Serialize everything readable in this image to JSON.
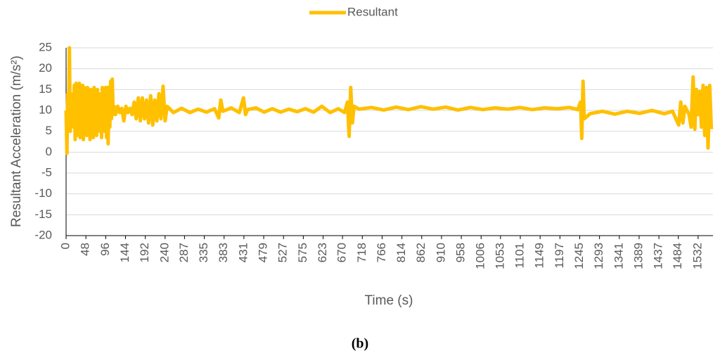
{
  "chart_data": {
    "type": "line",
    "caption": "(b)",
    "xlabel": "Time (s)",
    "ylabel": "Resultant Acceleration (m/s²)",
    "xlim": [
      0,
      1568
    ],
    "ylim": [
      -20,
      25
    ],
    "xticks": [
      0,
      48,
      96,
      144,
      192,
      240,
      287,
      335,
      383,
      431,
      479,
      527,
      575,
      623,
      670,
      718,
      766,
      814,
      862,
      910,
      958,
      1006,
      1053,
      1101,
      1149,
      1197,
      1245,
      1293,
      1341,
      1389,
      1437,
      1484,
      1532
    ],
    "yticks": [
      -20,
      -15,
      -10,
      -5,
      0,
      5,
      10,
      15,
      20,
      25
    ],
    "grid": true,
    "legend": "top",
    "series": [
      {
        "name": "Resultant",
        "color": "#ffc000",
        "x": [
          0,
          2,
          4,
          6,
          8,
          10,
          12,
          14,
          16,
          18,
          20,
          22,
          24,
          26,
          28,
          30,
          32,
          34,
          36,
          38,
          40,
          42,
          44,
          46,
          48,
          50,
          52,
          54,
          56,
          58,
          60,
          62,
          64,
          66,
          68,
          70,
          72,
          74,
          76,
          78,
          80,
          82,
          84,
          86,
          88,
          90,
          92,
          94,
          96,
          98,
          100,
          102,
          104,
          106,
          108,
          110,
          112,
          114,
          116,
          120,
          125,
          130,
          135,
          140,
          145,
          150,
          155,
          160,
          165,
          170,
          175,
          180,
          185,
          190,
          195,
          200,
          205,
          210,
          215,
          220,
          225,
          230,
          235,
          240,
          245,
          260,
          280,
          300,
          320,
          340,
          360,
          370,
          375,
          380,
          400,
          420,
          430,
          435,
          440,
          460,
          480,
          500,
          520,
          540,
          560,
          580,
          600,
          620,
          640,
          660,
          675,
          682,
          686,
          690,
          694,
          698,
          710,
          740,
          770,
          800,
          830,
          860,
          890,
          920,
          950,
          980,
          1010,
          1040,
          1070,
          1100,
          1130,
          1160,
          1190,
          1220,
          1240,
          1247,
          1250,
          1253,
          1256,
          1270,
          1300,
          1330,
          1360,
          1390,
          1420,
          1450,
          1470,
          1485,
          1490,
          1495,
          1500,
          1510,
          1515,
          1520,
          1524,
          1528,
          1532,
          1536,
          1540,
          1544,
          1548,
          1552,
          1556,
          1560,
          1564
        ],
        "values": [
          10,
          -0.3,
          14,
          6,
          25,
          5,
          14,
          8,
          13,
          6,
          16,
          3,
          16.5,
          4,
          15,
          5,
          16.5,
          3.5,
          16,
          6,
          16,
          3,
          15.5,
          5,
          14,
          4,
          15.5,
          6,
          15,
          3,
          15,
          5,
          14,
          3.5,
          15.5,
          6,
          13,
          4,
          15,
          7,
          14,
          5,
          12,
          3.5,
          15.5,
          6,
          15,
          5,
          15.5,
          3.5,
          15.5,
          2,
          15.5,
          6,
          17,
          8,
          17.5,
          9,
          11,
          9,
          11,
          9.5,
          10.5,
          7.5,
          11,
          9.5,
          10.5,
          9,
          12,
          8,
          13,
          7.5,
          13,
          8,
          12.5,
          7,
          13.5,
          6.5,
          12.5,
          7.5,
          14,
          8,
          15.8,
          7.5,
          11,
          9.5,
          10.5,
          9.5,
          10.3,
          9.6,
          10.4,
          8.2,
          12.5,
          9.8,
          10.6,
          9.5,
          13,
          9,
          10.2,
          10.6,
          9.6,
          10.4,
          9.6,
          10.3,
          9.7,
          10.4,
          9.6,
          11,
          9.5,
          10.4,
          9.5,
          12,
          3.8,
          15.5,
          7,
          11,
          10.3,
          10.7,
          10.1,
          10.8,
          10.2,
          10.9,
          10.3,
          10.8,
          10.1,
          10.7,
          10.2,
          10.6,
          10.3,
          10.7,
          10.2,
          10.6,
          10.4,
          10.7,
          10.2,
          12,
          3.3,
          17,
          8,
          9.2,
          9.8,
          9.1,
          9.8,
          9.3,
          10,
          9.2,
          9.8,
          6.5,
          12,
          7,
          11,
          9,
          6,
          18,
          5.5,
          15,
          9,
          14.5,
          6,
          16,
          4,
          15.5,
          1,
          16,
          5.5
        ]
      }
    ]
  }
}
